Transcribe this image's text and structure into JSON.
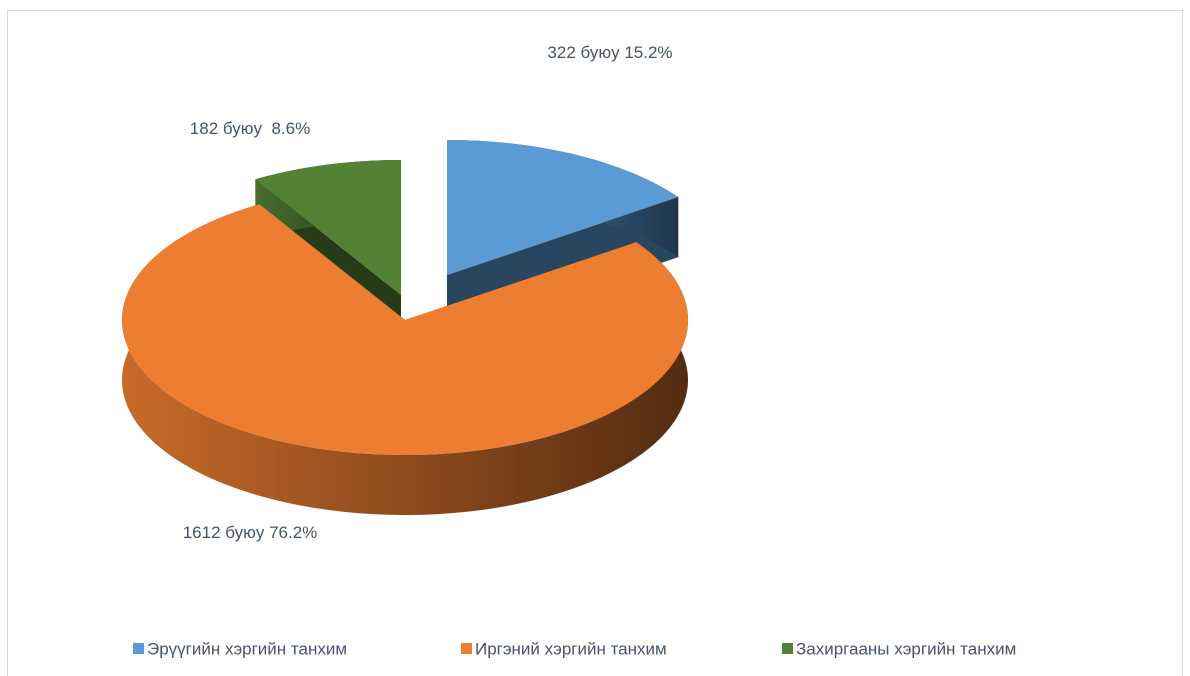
{
  "chart_data": {
    "type": "pie",
    "categories": [
      "Эрүүгийн хэргийн танхим",
      "Иргэний хэргийн танхим",
      "Захиргааны хэргийн танхим"
    ],
    "values": [
      322,
      1612,
      182
    ],
    "value_labels": [
      "322 буюу 15.2%",
      "1612 буюу 76.2%",
      "182 буюу  8.6%"
    ],
    "series_colors": [
      "#5b9bd5",
      "#ed7d31",
      "#548235"
    ],
    "legend": "bottom"
  }
}
